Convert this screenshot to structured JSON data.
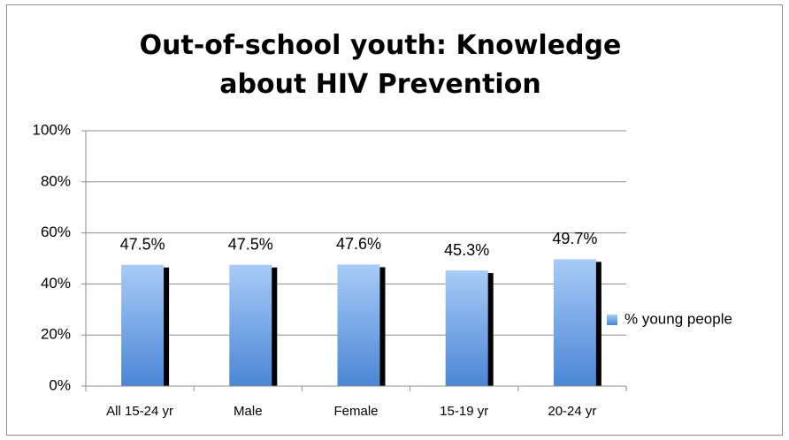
{
  "chart_data": {
    "type": "bar",
    "title": "Out-of-school youth: Knowledge about HIV Prevention",
    "categories": [
      "All 15-24 yr",
      "Male",
      "Female",
      "15-19 yr",
      "20-24 yr"
    ],
    "series": [
      {
        "name": "% young people",
        "color": "#4a86d6",
        "values": [
          47.5,
          47.5,
          47.6,
          45.3,
          49.7
        ],
        "value_labels": [
          "47.5%",
          "47.5%",
          "47.6%",
          "45.3%",
          "49.7%"
        ]
      }
    ],
    "ylim": [
      0,
      100
    ],
    "yticks": [
      {
        "value": 0,
        "label": "0%"
      },
      {
        "value": 20,
        "label": "20%"
      },
      {
        "value": 40,
        "label": "40%"
      },
      {
        "value": 60,
        "label": "60%"
      },
      {
        "value": 80,
        "label": "80%"
      },
      {
        "value": 100,
        "label": "100%"
      }
    ],
    "grid": true,
    "legend": "right"
  }
}
